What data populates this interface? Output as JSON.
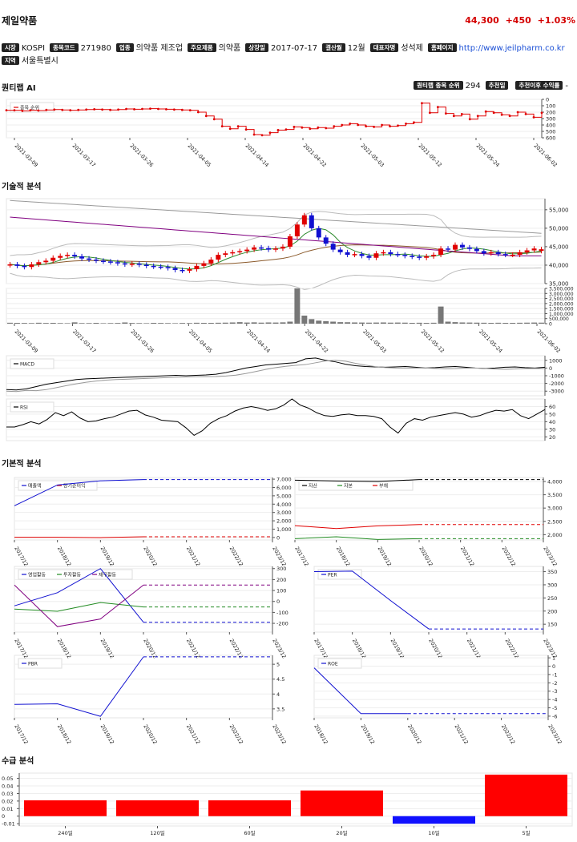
{
  "company": {
    "name": "제일약품",
    "price": "44,300",
    "change": "+450",
    "change_pct": "+1.03%"
  },
  "info": [
    {
      "tag": "시장",
      "value": "KOSPI"
    },
    {
      "tag": "종목코드",
      "value": "271980"
    },
    {
      "tag": "업종",
      "value": "의약품 제조업"
    },
    {
      "tag": "주요제품",
      "value": "의약품"
    },
    {
      "tag": "상장일",
      "value": "2017-07-17"
    },
    {
      "tag": "결산월",
      "value": "12월"
    },
    {
      "tag": "대표자명",
      "value": "성석제"
    },
    {
      "tag": "홈페이지",
      "value": "http://www.jeilpharm.co.kr",
      "link": true
    },
    {
      "tag": "지역",
      "value": "서울특별시"
    }
  ],
  "sections": {
    "ai": "퀀티랩 AI",
    "tech": "기술적 분석",
    "fund": "기본적 분석",
    "supply": "수급 분석"
  },
  "ai_badges": [
    {
      "tag": "퀀티랩 종목 순위",
      "value": "294"
    },
    {
      "tag": "추천일",
      "value": ""
    },
    {
      "tag": "추천이후 수익률",
      "value": "-"
    }
  ],
  "colors": {
    "up": "#e00000",
    "down": "#1010d0",
    "text": "#111111"
  },
  "dates": [
    "2021-03-09",
    "2021-03-17",
    "2021-03-26",
    "2021-04-05",
    "2021-04-14",
    "2021-04-22",
    "2021-05-03",
    "2021-05-12",
    "2021-05-24",
    "2021-06-02"
  ],
  "years": [
    "2017/12",
    "2018/12",
    "2019/12",
    "2020/12",
    "2021/12",
    "2022/12",
    "2023/12"
  ],
  "chart_data": [
    {
      "type": "line",
      "legend": [
        "종목 순위"
      ],
      "yticks": [
        "0",
        "100",
        "200",
        "300",
        "400",
        "500",
        "600"
      ],
      "ylim": [
        0,
        600
      ],
      "y_inverted": true,
      "values": [
        170,
        170,
        180,
        170,
        175,
        165,
        160,
        165,
        170,
        165,
        160,
        155,
        160,
        165,
        160,
        150,
        155,
        150,
        145,
        150,
        155,
        160,
        165,
        170,
        200,
        260,
        310,
        420,
        460,
        420,
        470,
        550,
        560,
        520,
        480,
        470,
        430,
        440,
        460,
        440,
        450,
        420,
        400,
        380,
        400,
        420,
        430,
        400,
        420,
        410,
        380,
        360,
        60,
        210,
        120,
        220,
        260,
        230,
        310,
        260,
        190,
        210,
        240,
        260,
        200,
        230,
        280,
        210
      ]
    },
    {
      "type": "candlestick",
      "yticks": [
        "35,000",
        "40,000",
        "45,000",
        "50,000",
        "55,000"
      ],
      "ylim": [
        35000,
        58000
      ],
      "close": [
        40200,
        39800,
        39500,
        40200,
        40800,
        41200,
        42000,
        42500,
        42800,
        42400,
        41800,
        41500,
        41200,
        41000,
        40800,
        40500,
        40200,
        40400,
        40100,
        39800,
        39600,
        39500,
        39200,
        38700,
        38500,
        38900,
        39800,
        40500,
        41500,
        42800,
        43200,
        43500,
        43800,
        44200,
        44800,
        44600,
        44200,
        44500,
        45000,
        47800,
        51000,
        53500,
        50000,
        47500,
        45800,
        44200,
        43500,
        42800,
        43000,
        42500,
        42000,
        43200,
        43500,
        43000,
        42800,
        42500,
        42300,
        42000,
        42400,
        42800,
        44500,
        44200,
        45500,
        44800,
        44400,
        43800,
        43200,
        43500,
        43000,
        42800,
        42800,
        43500,
        44000,
        44500,
        44300
      ],
      "open": [
        40000,
        40200,
        39800,
        39500,
        40200,
        40800,
        41200,
        42000,
        42500,
        42800,
        42400,
        41800,
        41500,
        41200,
        41000,
        40800,
        40500,
        40200,
        40400,
        40100,
        39800,
        39600,
        39500,
        39200,
        38700,
        38500,
        38900,
        39800,
        40500,
        41500,
        42800,
        43200,
        43500,
        43800,
        44200,
        44800,
        44600,
        44200,
        44500,
        45000,
        47800,
        51000,
        53500,
        50000,
        47500,
        45800,
        44200,
        43500,
        42800,
        43000,
        42500,
        42000,
        43200,
        43500,
        43000,
        42800,
        42500,
        42300,
        42000,
        42400,
        42800,
        44500,
        44200,
        45500,
        44800,
        44400,
        43800,
        43200,
        43500,
        43000,
        42800,
        42800,
        43500,
        44000,
        43850
      ]
    },
    {
      "type": "bar",
      "name": "volume",
      "yticks": [
        "0",
        "500,000",
        "1,000,000",
        "1,500,000",
        "2,000,000",
        "2,500,000",
        "3,000,000",
        "3,500,000"
      ],
      "ylim": [
        0,
        3500000
      ],
      "values": [
        90000,
        80000,
        70000,
        60000,
        90000,
        70000,
        80000,
        60000,
        50000,
        130000,
        60000,
        60000,
        80000,
        50000,
        60000,
        70000,
        120000,
        70000,
        60000,
        50000,
        80000,
        70000,
        60000,
        50000,
        70000,
        60000,
        90000,
        80000,
        80000,
        90000,
        100000,
        120000,
        150000,
        110000,
        130000,
        100000,
        120000,
        110000,
        130000,
        200000,
        3500000,
        800000,
        450000,
        300000,
        250000,
        200000,
        150000,
        140000,
        120000,
        110000,
        100000,
        110000,
        120000,
        100000,
        110000,
        100000,
        80000,
        90000,
        80000,
        90000,
        1700000,
        200000,
        150000,
        120000,
        110000,
        100000,
        90000,
        80000,
        90000,
        80000,
        80000,
        90000,
        100000,
        110000,
        100000
      ]
    },
    {
      "type": "line",
      "legend": [
        "MACD"
      ],
      "yticks": [
        "-3000",
        "-2000",
        "-1000",
        "0",
        "1000"
      ],
      "ylim": [
        -3600,
        1600
      ],
      "values": [
        -2800,
        -2850,
        -2700,
        -2400,
        -2100,
        -1900,
        -1700,
        -1500,
        -1400,
        -1350,
        -1300,
        -1250,
        -1200,
        -1150,
        -1100,
        -1050,
        -1000,
        -950,
        -1000,
        -950,
        -900,
        -800,
        -600,
        -300,
        0,
        200,
        400,
        500,
        600,
        700,
        1200,
        1300,
        1000,
        800,
        500,
        300,
        200,
        150,
        100,
        150,
        200,
        100,
        0,
        50,
        150,
        200,
        100,
        0,
        -50,
        0,
        100,
        150,
        50,
        0,
        100
      ]
    },
    {
      "type": "line",
      "legend": [
        "RSI"
      ],
      "yticks": [
        "20",
        "30",
        "40",
        "50",
        "60"
      ],
      "ylim": [
        15,
        70
      ],
      "values": [
        33,
        33,
        36,
        40,
        37,
        43,
        52,
        48,
        53,
        45,
        40,
        41,
        44,
        46,
        50,
        54,
        55,
        49,
        46,
        42,
        41,
        40,
        32,
        22,
        28,
        38,
        44,
        48,
        54,
        58,
        60,
        58,
        55,
        57,
        62,
        70,
        62,
        58,
        52,
        48,
        47,
        49,
        50,
        48,
        48,
        47,
        44,
        33,
        25,
        38,
        44,
        42,
        46,
        48,
        50,
        52,
        50,
        46,
        48,
        52,
        55,
        54,
        56,
        48,
        44,
        50,
        56
      ]
    },
    {
      "type": "line",
      "legend": [
        "매출액",
        "당기순이익"
      ],
      "x": [
        "2017/12",
        "2018/12",
        "2019/12",
        "2020/12",
        "2021/12",
        "2022/12",
        "2023/12"
      ],
      "yticks": [
        "0",
        "1,000",
        "2,000",
        "3,000",
        "4,000",
        "5,000",
        "6,000",
        "7,000"
      ],
      "ylim": [
        -300,
        7200
      ],
      "series": [
        {
          "values": [
            3800,
            6300,
            6800,
            6950,
            6950,
            6950,
            6950
          ]
        },
        {
          "values": [
            20,
            20,
            -20,
            80,
            80,
            80,
            80
          ]
        }
      ]
    },
    {
      "type": "line",
      "legend": [
        "자산",
        "자본",
        "부채"
      ],
      "x": [
        "2017/12",
        "2018/12",
        "2019/12",
        "2020/12",
        "2021/12",
        "2022/12",
        "2023/12"
      ],
      "yticks": [
        "2,000",
        "2,500",
        "3,000",
        "3,500",
        "4,000"
      ],
      "ylim": [
        1800,
        4150
      ],
      "series": [
        {
          "values": [
            4050,
            4020,
            4000,
            4070,
            4070,
            4070,
            4070
          ]
        },
        {
          "values": [
            1850,
            1920,
            1820,
            1850,
            1850,
            1850,
            1850
          ]
        },
        {
          "values": [
            2340,
            2230,
            2330,
            2380,
            2380,
            2380,
            2380
          ]
        }
      ]
    },
    {
      "type": "line",
      "legend": [
        "영업활동",
        "투자활동",
        "재무활동"
      ],
      "x": [
        "2017/12",
        "2018/12",
        "2019/12",
        "2020/12",
        "2021/12",
        "2022/12",
        "2023/12"
      ],
      "yticks": [
        "-200",
        "-100",
        "0",
        "100",
        "200",
        "300"
      ],
      "ylim": [
        -280,
        320
      ],
      "series": [
        {
          "values": [
            -40,
            80,
            300,
            -190,
            -190,
            -190,
            -190
          ]
        },
        {
          "values": [
            -70,
            -90,
            -10,
            -50,
            -50,
            -50,
            -50
          ]
        },
        {
          "values": [
            150,
            -230,
            -160,
            150,
            150,
            150,
            150
          ]
        }
      ]
    },
    {
      "type": "line",
      "legend": [
        "PER"
      ],
      "x": [
        "2017/12",
        "2018/12",
        "2019/12",
        "2020/12",
        "2021/12",
        "2022/12",
        "2023/12"
      ],
      "yticks": [
        "150",
        "200",
        "250",
        "300",
        "350"
      ],
      "ylim": [
        120,
        370
      ],
      "series": [
        {
          "values": [
            350,
            352,
            240,
            132,
            132,
            132,
            132
          ]
        }
      ]
    },
    {
      "type": "line",
      "legend": [
        "PBR"
      ],
      "x": [
        "2017/12",
        "2018/12",
        "2019/12",
        "2020/12",
        "2021/12",
        "2022/12",
        "2023/12"
      ],
      "yticks": [
        "3.5",
        "4",
        "4.5",
        "5"
      ],
      "ylim": [
        3.2,
        5.3
      ],
      "series": [
        {
          "values": [
            3.65,
            3.67,
            3.25,
            5.25,
            5.25,
            5.25,
            5.25
          ]
        }
      ]
    },
    {
      "type": "line",
      "legend": [
        "ROE"
      ],
      "x": [
        "2018/12",
        "2019/12",
        "2020/12",
        "2021/12",
        "2022/12",
        "2023/12"
      ],
      "yticks": [
        "-6",
        "-5",
        "-4",
        "-3",
        "-2",
        "-1",
        "0",
        "1"
      ],
      "ylim": [
        -6.2,
        1.3
      ],
      "series": [
        {
          "values": [
            -0.2,
            -5.7,
            -5.7,
            -5.7,
            -5.7,
            -5.7
          ]
        }
      ]
    },
    {
      "type": "bar",
      "categories": [
        "240일",
        "120일",
        "60일",
        "20일",
        "10일",
        "5일"
      ],
      "yticks": [
        "-0.01",
        "0",
        "0.01",
        "0.02",
        "0.03",
        "0.04",
        "0.05"
      ],
      "ylim": [
        -0.013,
        0.057
      ],
      "values": [
        0.021,
        0.021,
        0.021,
        0.034,
        -0.01,
        0.055
      ]
    }
  ]
}
